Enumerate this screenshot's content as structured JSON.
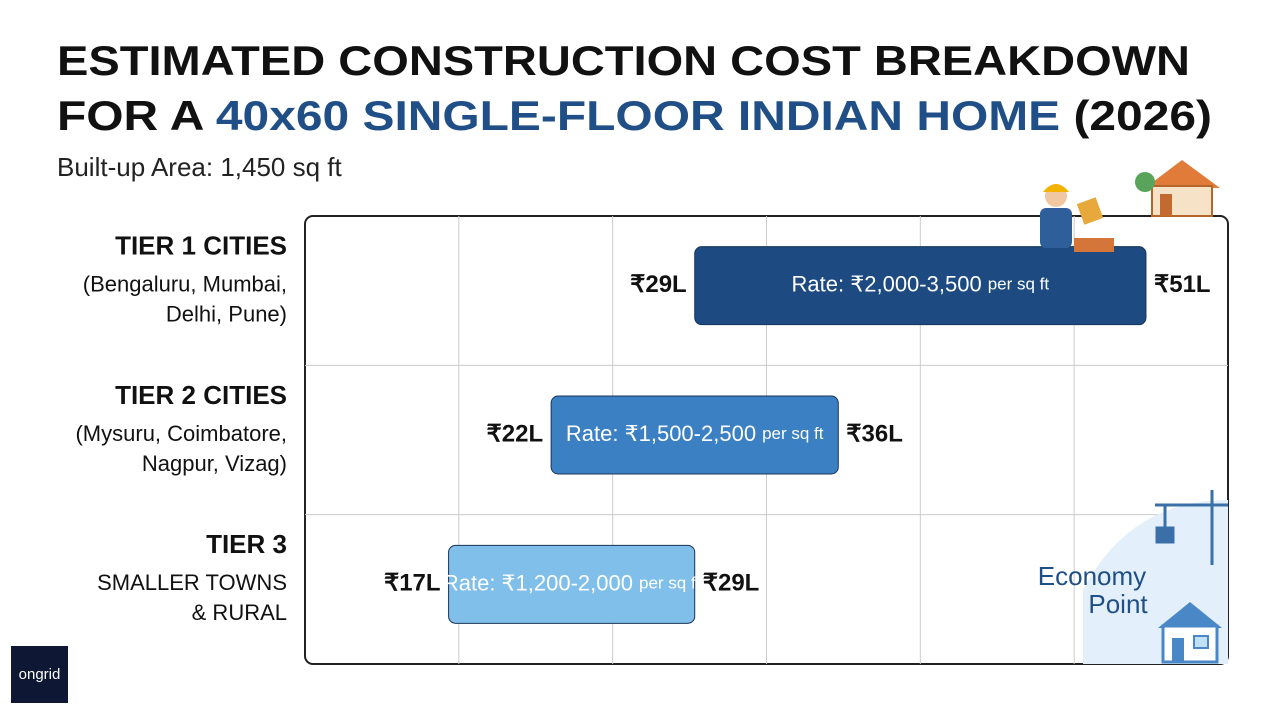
{
  "chart_data": {
    "type": "range_bar",
    "title": "ESTIMATED CONSTRUCTION COST BREAKDOWN",
    "title_line2": [
      "FOR A ",
      "40x60 SINGLE-FLOOR INDIAN HOME",
      " (2026)"
    ],
    "subtitle": "Built-up Area: 1,450 sq ft",
    "categories": [
      "TIER 1 CITIES",
      "TIER 2 CITIES",
      "TIER 3"
    ],
    "category_notes": [
      [
        "(Bengaluru, Mumbai,",
        "Delhi, Pune)"
      ],
      [
        "(Mysuru, Coimbatore,",
        "Nagpur, Vizag)"
      ],
      [
        "SMALLER TOWNS",
        "& RURAL"
      ]
    ],
    "low": [
      29,
      22,
      17
    ],
    "low_labels": [
      "₹29L",
      "₹22L",
      "₹17L"
    ],
    "high": [
      51,
      36,
      29
    ],
    "high_labels": [
      "₹51L",
      "₹36L",
      "₹29L"
    ],
    "rate_labels": [
      [
        "Rate: ₹2,000-3,500",
        "per sq ft"
      ],
      [
        "Rate: ₹1,500-2,500",
        "per sq ft"
      ],
      [
        "Rate: ₹1,200-2,000",
        "per sq ft"
      ]
    ],
    "colors": [
      "#1d4a80",
      "#3a80c3",
      "#80bfea"
    ],
    "xlim": [
      10,
      55
    ],
    "grid": true,
    "annotation": [
      "Economy",
      "Point"
    ],
    "logo": "ongrid"
  }
}
